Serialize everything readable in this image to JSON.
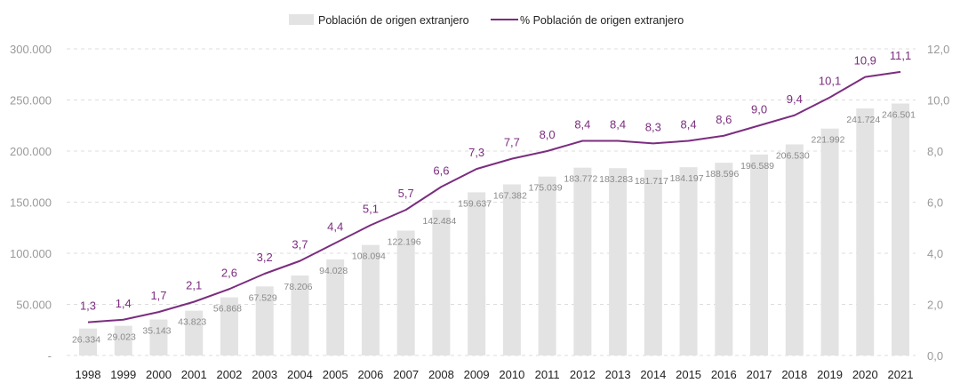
{
  "chart_data": {
    "type": "bar+line",
    "categories": [
      "1998",
      "1999",
      "2000",
      "2001",
      "2002",
      "2003",
      "2004",
      "2005",
      "2006",
      "2007",
      "2008",
      "2009",
      "2010",
      "2011",
      "2012",
      "2013",
      "2014",
      "2015",
      "2016",
      "2017",
      "2018",
      "2019",
      "2020",
      "2021"
    ],
    "series": [
      {
        "name": "Población de origen extranjero",
        "type": "bar",
        "axis": "left",
        "color": "#e3e3e3",
        "values": [
          26334,
          29023,
          35143,
          43823,
          56868,
          67529,
          78206,
          94028,
          108094,
          122196,
          142484,
          159637,
          167382,
          175039,
          183772,
          183283,
          181717,
          184197,
          188596,
          196589,
          206530,
          221992,
          241724,
          246501
        ],
        "labels": [
          "26.334",
          "29.023",
          "35.143",
          "43.823",
          "56.868",
          "67.529",
          "78.206",
          "94.028",
          "108.094",
          "122.196",
          "142.484",
          "159.637",
          "167.382",
          "175.039",
          "183.772",
          "183.283",
          "181.717",
          "184.197",
          "188.596",
          "196.589",
          "206.530",
          "221.992",
          "241.724",
          "246.501"
        ]
      },
      {
        "name": "% Población de origen extranjero",
        "type": "line",
        "axis": "right",
        "color": "#7b2d7f",
        "values": [
          1.3,
          1.4,
          1.7,
          2.1,
          2.6,
          3.2,
          3.7,
          4.4,
          5.1,
          5.7,
          6.6,
          7.3,
          7.7,
          8.0,
          8.4,
          8.4,
          8.3,
          8.4,
          8.6,
          9.0,
          9.4,
          10.1,
          10.9,
          11.1
        ],
        "labels": [
          "1,3",
          "1,4",
          "1,7",
          "2,1",
          "2,6",
          "3,2",
          "3,7",
          "4,4",
          "5,1",
          "5,7",
          "6,6",
          "7,3",
          "7,7",
          "8,0",
          "8,4",
          "8,4",
          "8,3",
          "8,4",
          "8,6",
          "9,0",
          "9,4",
          "10,1",
          "10,9",
          "11,1"
        ]
      }
    ],
    "y_left": {
      "range": [
        0,
        300000
      ],
      "ticks": [
        0,
        50000,
        100000,
        150000,
        200000,
        250000,
        300000
      ],
      "tick_labels": [
        "-",
        "50.000",
        "100.000",
        "150.000",
        "200.000",
        "250.000",
        "300.000"
      ]
    },
    "y_right": {
      "range": [
        0,
        12
      ],
      "ticks": [
        0,
        2,
        4,
        6,
        8,
        10,
        12
      ],
      "tick_labels": [
        "0,0",
        "2,0",
        "4,0",
        "6,0",
        "8,0",
        "10,0",
        "12,0"
      ]
    },
    "grid": "horizontal dashed",
    "legend_position": "top-center"
  }
}
